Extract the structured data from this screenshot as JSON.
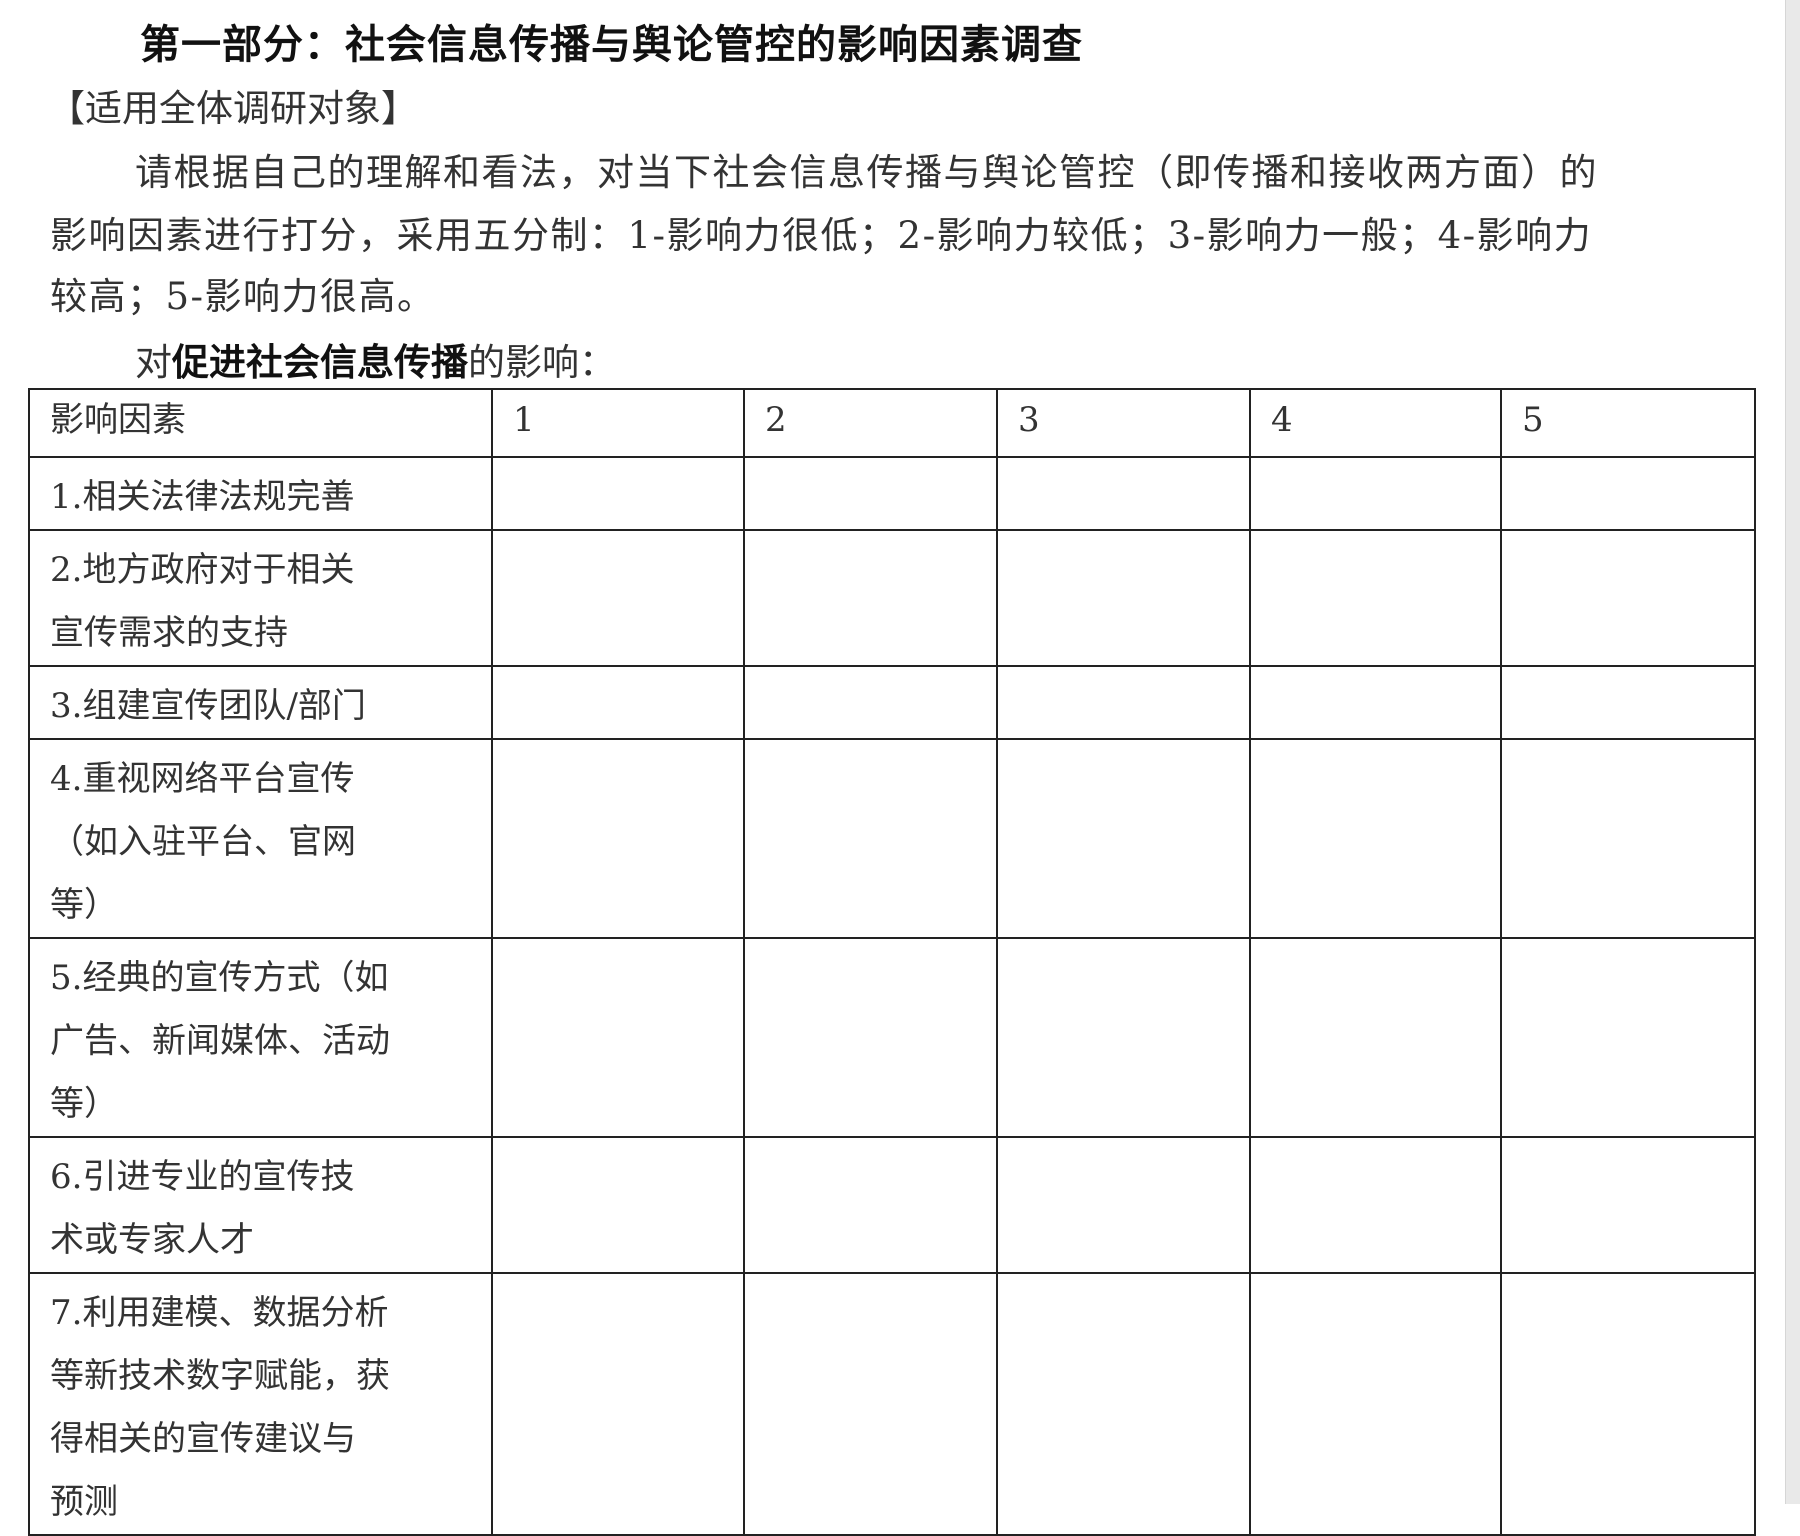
{
  "title": "第一部分：社会信息传播与舆论管控的影响因素调查",
  "scope": "【适用全体调研对象】",
  "instruction_lines": [
    "请根据自己的理解和看法，对当下社会信息传播与舆论管控（即传播和接收两方面）的",
    "影响因素进行打分，采用五分制：1-影响力很低；2-影响力较低；3-影响力一般；4-影响力",
    "较高；5-影响力很高。"
  ],
  "lead": {
    "prefix": "对",
    "bold": "促进社会信息传播",
    "suffix": "的影响："
  },
  "table": {
    "headers": [
      "影响因素",
      "1",
      "2",
      "3",
      "4",
      "5"
    ],
    "rows": [
      [
        "1.相关法律法规完善"
      ],
      [
        "2.地方政府对于相关",
        "宣传需求的支持"
      ],
      [
        "3.组建宣传团队/部门"
      ],
      [
        "4.重视网络平台宣传",
        "（如入驻平台、官网",
        "等）"
      ],
      [
        "5.经典的宣传方式（如",
        "广告、新闻媒体、活动",
        "等）"
      ],
      [
        "6.引进专业的宣传技",
        "术或专家人才"
      ],
      [
        "7.利用建模、数据分析",
        "等新技术数字赋能，获",
        "得相关的宣传建议与",
        "预测"
      ]
    ]
  }
}
